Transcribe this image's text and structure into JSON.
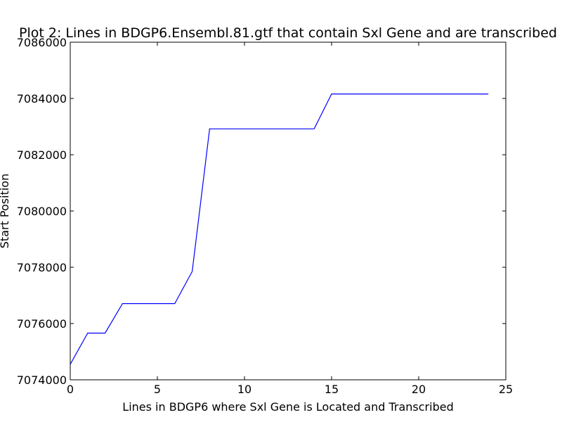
{
  "chart_data": {
    "type": "line",
    "title": "Plot 2: Lines in BDGP6.Ensembl.81.gtf that contain Sxl Gene and are transcribed",
    "xlabel": "Lines in BDGP6 where Sxl Gene is Located and Transcribed",
    "ylabel": "Start Position",
    "xlim": [
      0,
      25
    ],
    "ylim": [
      7074000,
      7086000
    ],
    "xticks": [
      0,
      5,
      10,
      15,
      20,
      25
    ],
    "yticks": [
      7074000,
      7076000,
      7078000,
      7080000,
      7082000,
      7084000,
      7086000
    ],
    "xtick_labels": [
      "0",
      "5",
      "10",
      "15",
      "20",
      "25"
    ],
    "ytick_labels": [
      "7074000",
      "7076000",
      "7078000",
      "7080000",
      "7082000",
      "7084000",
      "7086000"
    ],
    "grid": false,
    "series": [
      {
        "color": "#0000ff",
        "x": [
          0,
          1,
          2,
          3,
          4,
          5,
          6,
          7,
          8,
          9,
          10,
          11,
          12,
          13,
          14,
          15,
          16,
          17,
          18,
          19,
          20,
          21,
          22,
          23,
          24
        ],
        "y": [
          7074550,
          7075660,
          7075660,
          7076710,
          7076710,
          7076710,
          7076710,
          7077850,
          7082920,
          7082920,
          7082920,
          7082920,
          7082920,
          7082920,
          7082920,
          7084160,
          7084160,
          7084160,
          7084160,
          7084160,
          7084160,
          7084160,
          7084160,
          7084160,
          7084160
        ]
      }
    ]
  }
}
